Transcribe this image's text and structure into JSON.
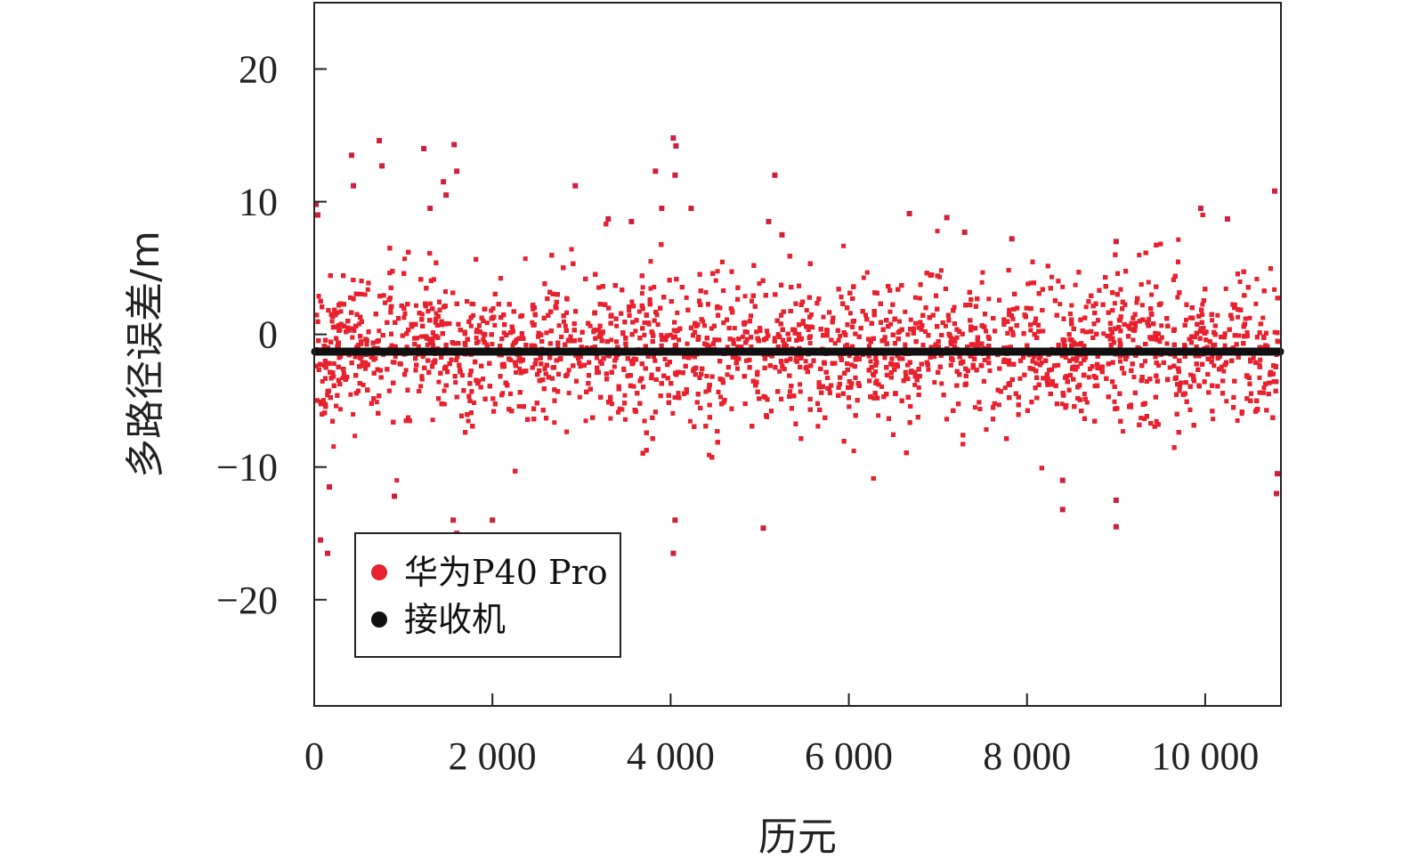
{
  "chart_data": {
    "type": "scatter",
    "title": "",
    "xlabel": "历元",
    "ylabel": "多路径误差/m",
    "xlim": [
      0,
      10850
    ],
    "ylim": [
      -28,
      25
    ],
    "xticks": [
      0,
      2000,
      4000,
      6000,
      8000,
      10000
    ],
    "xtick_labels": [
      "0",
      "2 000",
      "4 000",
      "6 000",
      "8 000",
      "10 000"
    ],
    "yticks": [
      20,
      10,
      0,
      -10,
      -20
    ],
    "ytick_labels": [
      "20",
      "10",
      "0",
      "−10",
      "−20"
    ],
    "grid": false,
    "legend_position": "bottom-left",
    "series": [
      {
        "name": "华为P40 Pro",
        "color": "#e8212e",
        "description": "dense scatter band, mostly between about -7 and +5 m across all epochs, with outliers",
        "band": {
          "x_range": [
            0,
            10850
          ],
          "y_core": [
            -6.5,
            4.5
          ],
          "y_spread": [
            -10,
            8
          ]
        },
        "outliers": [
          [
            20,
            9.8
          ],
          [
            40,
            9.0
          ],
          [
            70,
            -15.5
          ],
          [
            150,
            -16.5
          ],
          [
            170,
            -11.5
          ],
          [
            420,
            13.5
          ],
          [
            440,
            11.2
          ],
          [
            730,
            14.6
          ],
          [
            760,
            12.7
          ],
          [
            900,
            -12.2
          ],
          [
            1230,
            14.0
          ],
          [
            1300,
            9.5
          ],
          [
            1450,
            11.5
          ],
          [
            1480,
            10.5
          ],
          [
            1570,
            14.3
          ],
          [
            1600,
            12.3
          ],
          [
            1560,
            -14.0
          ],
          [
            1600,
            -15.0
          ],
          [
            2000,
            -14.0
          ],
          [
            2930,
            11.2
          ],
          [
            3300,
            8.7
          ],
          [
            3560,
            8.5
          ],
          [
            3830,
            12.3
          ],
          [
            3900,
            9.5
          ],
          [
            4030,
            14.8
          ],
          [
            4060,
            14.2
          ],
          [
            4050,
            -14.0
          ],
          [
            4030,
            -16.5
          ],
          [
            4050,
            12.0
          ],
          [
            4230,
            9.5
          ],
          [
            5040,
            -14.6
          ],
          [
            5100,
            8.5
          ],
          [
            5170,
            12.0
          ],
          [
            5250,
            7.5
          ],
          [
            6680,
            9.1
          ],
          [
            7100,
            8.8
          ],
          [
            7300,
            7.7
          ],
          [
            7830,
            7.2
          ],
          [
            8400,
            -13.2
          ],
          [
            8400,
            -11.0
          ],
          [
            9000,
            -14.5
          ],
          [
            9000,
            -12.5
          ],
          [
            9000,
            7.0
          ],
          [
            9950,
            9.5
          ],
          [
            10250,
            8.7
          ],
          [
            10780,
            10.8
          ],
          [
            10800,
            -12.0
          ],
          [
            10810,
            -10.5
          ]
        ]
      },
      {
        "name": "接收机",
        "color": "#111111",
        "description": "constant line of points at about -1.3 m",
        "value": -1.3
      }
    ],
    "legend": [
      {
        "label": "华为P40 Pro",
        "color": "#e8212e"
      },
      {
        "label": "接收机",
        "color": "#111111"
      }
    ]
  }
}
